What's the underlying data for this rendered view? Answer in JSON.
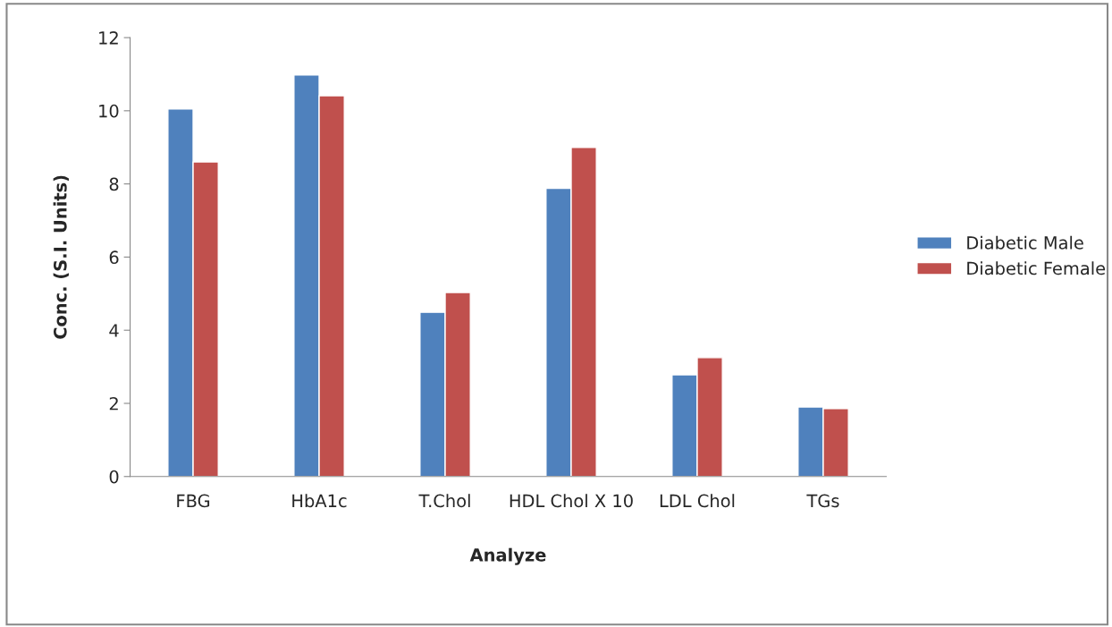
{
  "chart_data": {
    "type": "bar",
    "xlabel": "Analyze",
    "ylabel": "Conc. (S.I. Units)",
    "categories": [
      "FBG",
      "HbA1c",
      "T.Chol",
      "HDL Chol X 10",
      "LDL Chol",
      "TGs"
    ],
    "series": [
      {
        "name": "Diabetic Male",
        "color": "#4f81bd",
        "values": [
          10.05,
          10.98,
          4.49,
          7.88,
          2.78,
          1.9
        ]
      },
      {
        "name": "Diabetic Female",
        "color": "#c0504d",
        "values": [
          8.6,
          10.41,
          5.03,
          9.0,
          3.25,
          1.86
        ]
      }
    ],
    "ylim": [
      0,
      12
    ],
    "yticks": [
      0,
      2,
      4,
      6,
      8,
      10,
      12
    ],
    "grid": false,
    "legend": "right"
  }
}
